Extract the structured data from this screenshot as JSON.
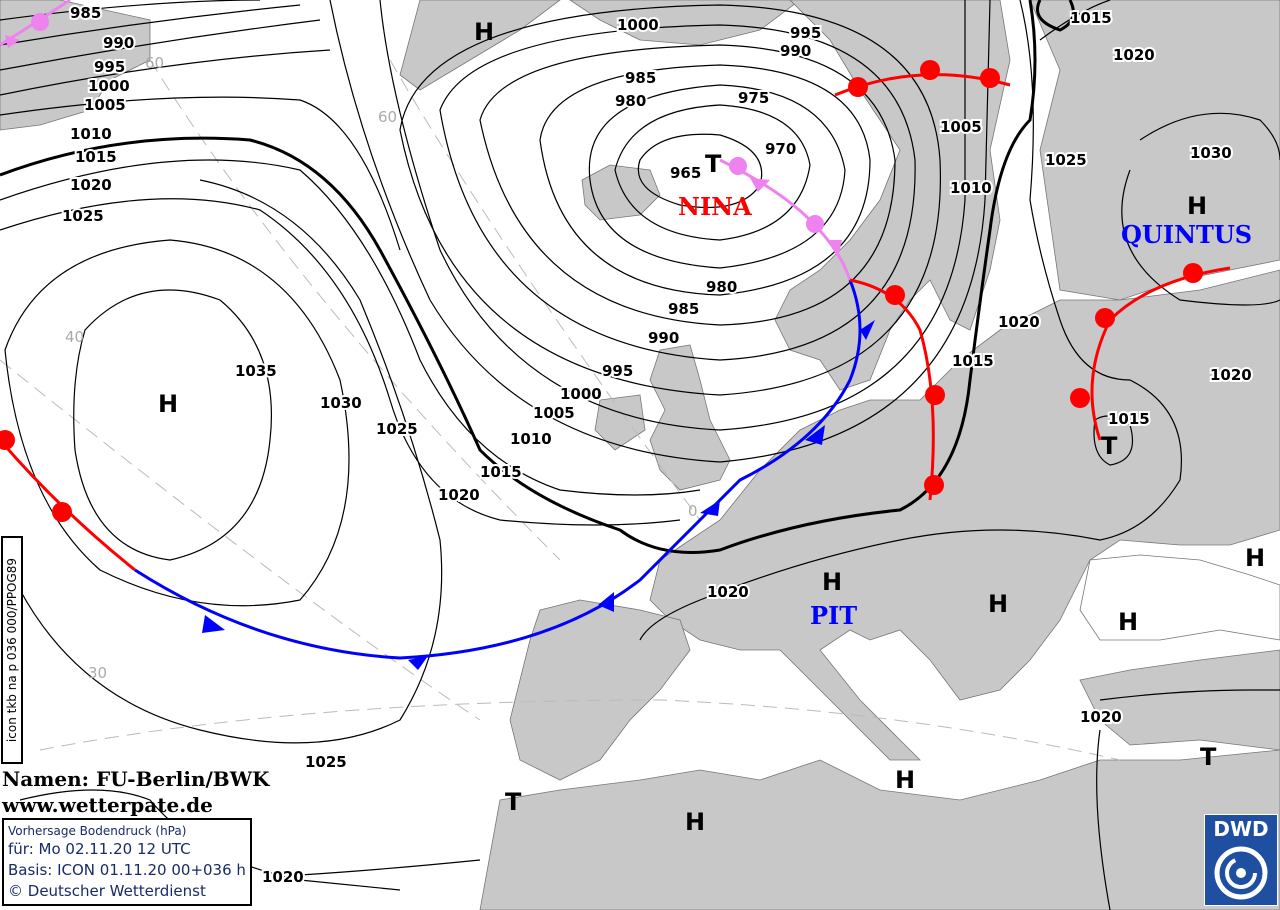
{
  "map": {
    "credits": {
      "names": "Namen: FU-Berlin/BWK",
      "website": "www.wetterpate.de"
    },
    "info_box": {
      "title": "Vorhersage Bodendruck (hPa)",
      "valid": "für:  Mo 02.11.20  12 UTC",
      "basis": "Basis: ICON  01.11.20 00+036 h",
      "copyright": "© Deutscher Wetterdienst"
    },
    "product_code": "icon tkb na p 036 000/PPOG89",
    "logo_text": "DWD",
    "colors": {
      "land": "#c8c8c8",
      "sea": "#ffffff",
      "warm_front": "#ff0000",
      "cold_front": "#0000ff",
      "occlusion": "#ee82ee",
      "low_name": "#ff0000",
      "high_name": "#0000ff"
    },
    "pressure_systems": [
      {
        "type": "T",
        "name": "NINA",
        "pressure": "965"
      },
      {
        "type": "H",
        "name": "QUINTUS"
      },
      {
        "type": "H",
        "name": "PIT"
      },
      {
        "type": "T",
        "pressure": "1015"
      }
    ],
    "system_letters": {
      "high": "H",
      "low": "T"
    },
    "isobar_labels": [
      "985",
      "990",
      "995",
      "1000",
      "1005",
      "1010",
      "1015",
      "1020",
      "1025",
      "1000",
      "995",
      "990",
      "985",
      "980",
      "975",
      "970",
      "965",
      "1005",
      "1010",
      "1015",
      "1020",
      "1025",
      "1030",
      "980",
      "985",
      "990",
      "995",
      "1000",
      "1005",
      "1010",
      "1015",
      "1020",
      "1035",
      "1030",
      "1025",
      "1020",
      "1015",
      "1020",
      "1020",
      "1025",
      "1020",
      "1020",
      "1015"
    ],
    "grid_labels": [
      "60",
      "60",
      "40",
      "30",
      "0"
    ]
  }
}
